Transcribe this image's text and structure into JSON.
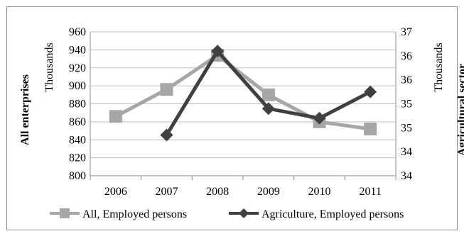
{
  "chart_data": {
    "type": "line",
    "categories": [
      "2006",
      "2007",
      "2008",
      "2009",
      "2010",
      "2011"
    ],
    "left_axis": {
      "title": "All enterprises",
      "unit": "Thousands",
      "ticks": [
        "800",
        "820",
        "840",
        "860",
        "880",
        "900",
        "920",
        "940",
        "960"
      ],
      "ylim": [
        800,
        960
      ]
    },
    "right_axis": {
      "title": "Agricultural sector",
      "unit": "Thousands",
      "ticks": [
        "34",
        "34",
        "35",
        "35",
        "36",
        "36",
        "37"
      ],
      "ylim": [
        34,
        37
      ]
    },
    "series": [
      {
        "name": "All, Employed persons",
        "axis": "left",
        "color": "#a6a6a6",
        "marker": "square",
        "values": [
          866,
          896,
          934,
          890,
          860,
          852
        ]
      },
      {
        "name": "Agriculture, Employed persons",
        "axis": "right",
        "color": "#404040",
        "marker": "diamond",
        "values": [
          null,
          34.85,
          36.6,
          35.4,
          35.2,
          35.75
        ]
      }
    ],
    "grid": "horizontal",
    "legend_position": "bottom"
  }
}
